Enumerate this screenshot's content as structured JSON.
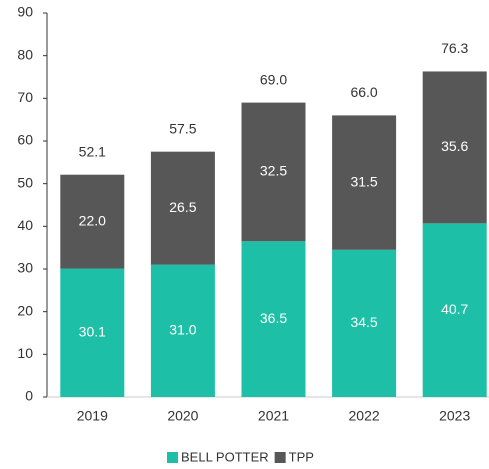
{
  "chart_data": {
    "type": "stacked_bar",
    "categories": [
      "2019",
      "2020",
      "2021",
      "2022",
      "2023"
    ],
    "series": [
      {
        "name": "BELL POTTER",
        "color": "#1dbfa6",
        "values": [
          30.1,
          31.0,
          36.5,
          34.5,
          40.7
        ],
        "value_labels": [
          "30.1",
          "31.0",
          "36.5",
          "34.5",
          "40.7"
        ]
      },
      {
        "name": "TPP",
        "color": "#575757",
        "values": [
          22.0,
          26.5,
          32.5,
          31.5,
          35.6
        ],
        "value_labels": [
          "22.0",
          "26.5",
          "32.5",
          "31.5",
          "35.6"
        ]
      }
    ],
    "totals": [
      52.1,
      57.5,
      69.0,
      66.0,
      76.3
    ],
    "total_labels": [
      "52.1",
      "57.5",
      "69.0",
      "66.0",
      "76.3"
    ],
    "ylim": [
      0,
      90
    ],
    "yticks": [
      0,
      10,
      20,
      30,
      40,
      50,
      60,
      70,
      80,
      90
    ],
    "legend": "bottom"
  }
}
